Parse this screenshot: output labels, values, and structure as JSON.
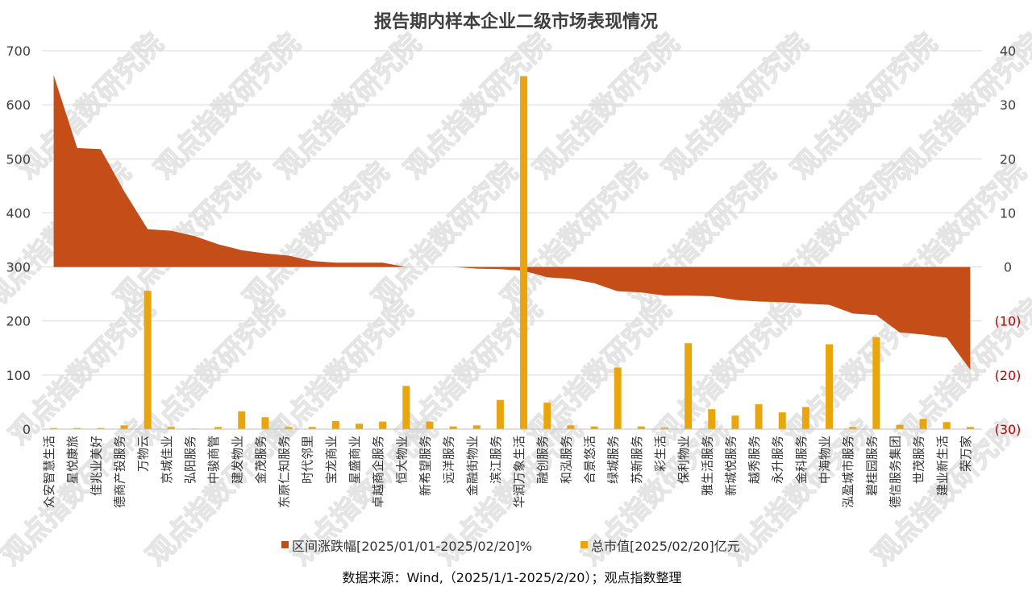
{
  "chart_data": {
    "type": "bar",
    "title": "报告期内样本企业二级市场表现情况",
    "source": "数据来源：Wind,（2025/1/1-2025/2/20）；观点指数整理",
    "watermark": "观点指数研究院",
    "categories": [
      "众安智慧生活",
      "星悦康旅",
      "佳兆业美好",
      "德商产投服务",
      "万物云",
      "京城佳业",
      "弘阳服务",
      "中骏商管",
      "建发物业",
      "金茂服务",
      "东原仁知服务",
      "时代邻里",
      "宝龙商业",
      "星盛商业",
      "卓越商企服务",
      "恒大物业",
      "新希望服务",
      "远洋服务",
      "金融街物业",
      "滨江服务",
      "华润万象生活",
      "融创服务",
      "和泓服务",
      "合景悠活",
      "绿城服务",
      "苏新服务",
      "彩生活",
      "保利物业",
      "雅生活服务",
      "新城悦服务",
      "越秀服务",
      "永升服务",
      "金科服务",
      "中海物业",
      "泓盈城市服务",
      "碧桂园服务",
      "德信服务集团",
      "世茂服务",
      "建业新生活",
      "荣万家"
    ],
    "series": [
      {
        "name": "区间涨跌幅[2025/01/01-2025/02/20]%",
        "type": "area",
        "axis": "right",
        "color": "#c54d17",
        "values": [
          35.5,
          22,
          21.8,
          14,
          7,
          6.7,
          5.7,
          4.2,
          3.1,
          2.5,
          2.1,
          1.1,
          0.8,
          0.8,
          0.8,
          0,
          0,
          0,
          -0.3,
          -0.4,
          -0.7,
          -1.9,
          -2.2,
          -3.0,
          -4.5,
          -4.7,
          -5.3,
          -5.3,
          -5.4,
          -6.1,
          -6.4,
          -6.5,
          -6.8,
          -7.0,
          -8.6,
          -8.9,
          -12.1,
          -12.5,
          -13.1,
          -19.0
        ]
      },
      {
        "name": "总市值[2025/02/20]亿元",
        "type": "bar",
        "axis": "left",
        "color": "#e8a60c",
        "values": [
          2,
          2,
          2,
          7,
          256,
          4,
          1,
          4,
          33,
          22,
          4,
          4,
          15,
          10,
          14,
          80,
          14,
          5,
          7,
          54,
          653,
          49,
          7,
          5,
          114,
          5,
          3,
          159,
          37,
          25,
          46,
          31,
          41,
          157,
          4,
          170,
          8,
          19,
          13,
          4
        ]
      }
    ],
    "y_left": {
      "min": 0,
      "max": 700,
      "ticks": [
        "0",
        "100",
        "200",
        "300",
        "400",
        "500",
        "600",
        "700"
      ]
    },
    "y_right": {
      "min": -30,
      "max": 40,
      "ticks": [
        "(30)",
        "(20)",
        "(10)",
        "0",
        "10",
        "20",
        "30",
        "40"
      ]
    },
    "grid": true,
    "legend_position": "bottom"
  }
}
